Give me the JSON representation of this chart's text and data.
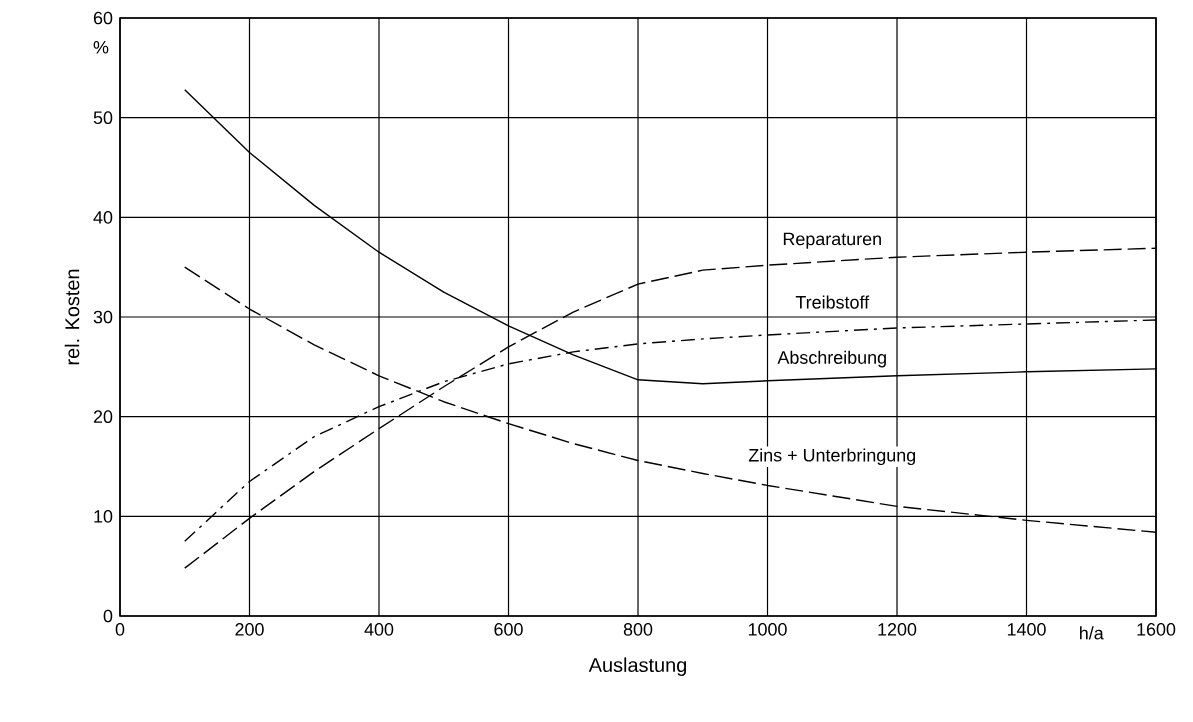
{
  "chart_data": {
    "type": "line",
    "xlabel": "Auslastung",
    "ylabel": "rel. Kosten",
    "annotations": [
      "%",
      "h/a"
    ],
    "x": [
      100,
      200,
      300,
      400,
      500,
      600,
      700,
      800,
      900,
      1000,
      1200,
      1400,
      1600
    ],
    "xlim": [
      0,
      1600
    ],
    "ylim": [
      0,
      60
    ],
    "xticks": [
      0,
      200,
      400,
      600,
      800,
      1000,
      1200,
      1400,
      1600
    ],
    "yticks": [
      0,
      10,
      20,
      30,
      40,
      50,
      60
    ],
    "grid": true,
    "series": [
      {
        "name": "Reparaturen",
        "color": "#000000",
        "line_style": "dashed",
        "values": [
          4.8,
          9.8,
          14.5,
          18.8,
          23,
          27,
          30.5,
          33.3,
          34.7,
          35.2,
          36,
          36.5,
          36.9
        ]
      },
      {
        "name": "Treibstoff",
        "color": "#000000",
        "line_style": "dashdot",
        "values": [
          7.5,
          13.5,
          18,
          21,
          23.5,
          25.3,
          26.5,
          27.3,
          27.8,
          28.2,
          28.9,
          29.3,
          29.7
        ]
      },
      {
        "name": "Abschreibung",
        "color": "#000000",
        "line_style": "solid",
        "values": [
          52.8,
          46.5,
          41.2,
          36.5,
          32.5,
          29.1,
          26.2,
          23.7,
          23.3,
          23.6,
          24.1,
          24.5,
          24.8
        ]
      },
      {
        "name": "Zins + Unterbringung",
        "color": "#000000",
        "line_style": "dashed",
        "values": [
          35,
          30.8,
          27.2,
          24.1,
          21.5,
          19.3,
          17.3,
          15.6,
          14.3,
          13.1,
          11,
          9.6,
          8.4
        ]
      }
    ]
  }
}
